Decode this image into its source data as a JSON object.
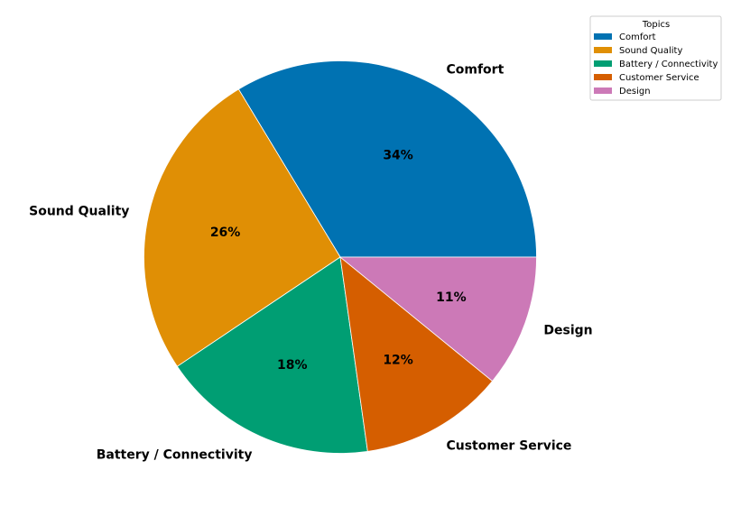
{
  "chart_data": {
    "type": "pie",
    "title": "",
    "categories": [
      "Comfort",
      "Sound Quality",
      "Battery / Connectivity",
      "Customer Service",
      "Design"
    ],
    "values": [
      34,
      26,
      18,
      12,
      11
    ],
    "percent_labels": [
      "34%",
      "26%",
      "18%",
      "12%",
      "11%"
    ],
    "colors": [
      "#0072b2",
      "#e08f05",
      "#009e73",
      "#d55e00",
      "#cc79b7"
    ],
    "start_angle_deg": 0,
    "direction": "counterclockwise",
    "legend": {
      "title": "Topics",
      "placement": "top-right",
      "entries": [
        "Comfort",
        "Sound Quality",
        "Battery / Connectivity",
        "Customer Service",
        "Design"
      ]
    }
  }
}
